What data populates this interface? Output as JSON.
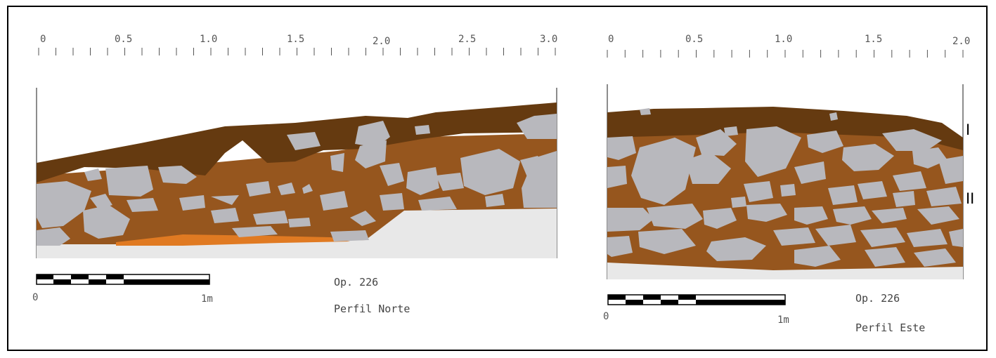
{
  "colors": {
    "dark_soil": "#653a10",
    "mid_soil": "#96561e",
    "orange_soil": "#e07a22",
    "stone": "#b8b8bd",
    "bedrock": "#e8e8e8"
  },
  "profiles": [
    {
      "ruler": {
        "labels": [
          "0",
          "0.5",
          "1.0",
          "1.5",
          "2.0",
          "2.5",
          "3.0"
        ]
      },
      "scale_bar": {
        "start_label": "0",
        "end_label": "1m"
      },
      "caption": {
        "op": "Op. 226",
        "title": "Perfil Norte"
      }
    },
    {
      "ruler": {
        "labels": [
          "0",
          "0.5",
          "1.0",
          "1.5",
          "2.0"
        ]
      },
      "scale_bar": {
        "start_label": "0",
        "end_label": "1m"
      },
      "caption": {
        "op": "Op. 226",
        "title": "Perfil Este"
      },
      "layer_labels": [
        "I",
        "II"
      ]
    }
  ]
}
